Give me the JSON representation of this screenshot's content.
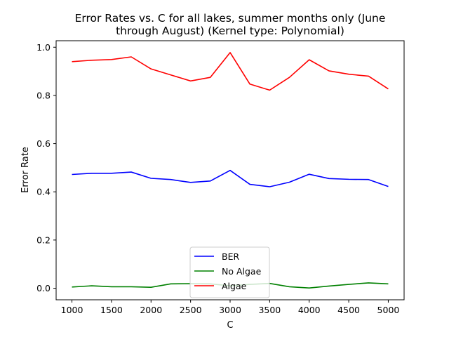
{
  "chart_data": {
    "type": "line",
    "title": "Error Rates vs. C for all lakes, summer months only (June through August) (Kernel type: Polynomial)",
    "title_lines": [
      "Error Rates vs. C for all lakes, summer months only (June",
      "through August) (Kernel type: Polynomial)"
    ],
    "xlabel": "C",
    "ylabel": "Error Rate",
    "xlim": [
      800,
      5200
    ],
    "ylim": [
      -0.048,
      1.027
    ],
    "x_ticks": [
      1000,
      1500,
      2000,
      2500,
      3000,
      3500,
      4000,
      4500,
      5000
    ],
    "y_ticks": [
      0.0,
      0.2,
      0.4,
      0.6,
      0.8,
      1.0
    ],
    "y_tick_labels": [
      "0.0",
      "0.2",
      "0.4",
      "0.6",
      "0.8",
      "1.0"
    ],
    "x": [
      1000,
      1250,
      1500,
      1750,
      2000,
      2250,
      2500,
      2750,
      3000,
      3250,
      3500,
      3750,
      4000,
      4250,
      4500,
      4750,
      5000
    ],
    "grid": false,
    "legend_position": "bottom-center",
    "series": [
      {
        "name": "BER",
        "color": "#0000ff",
        "values": [
          0.472,
          0.477,
          0.477,
          0.482,
          0.456,
          0.451,
          0.439,
          0.445,
          0.489,
          0.431,
          0.421,
          0.44,
          0.473,
          0.455,
          0.452,
          0.451,
          0.422
        ]
      },
      {
        "name": "No Algae",
        "color": "#008000",
        "values": [
          0.005,
          0.01,
          0.006,
          0.006,
          0.004,
          0.018,
          0.019,
          0.018,
          0.01,
          0.016,
          0.02,
          0.006,
          0.001,
          0.009,
          0.016,
          0.022,
          0.018
        ]
      },
      {
        "name": "Algae",
        "color": "#ff0000",
        "values": [
          0.94,
          0.946,
          0.949,
          0.96,
          0.91,
          0.885,
          0.86,
          0.875,
          0.978,
          0.847,
          0.822,
          0.875,
          0.948,
          0.902,
          0.888,
          0.88,
          0.827
        ]
      }
    ]
  }
}
